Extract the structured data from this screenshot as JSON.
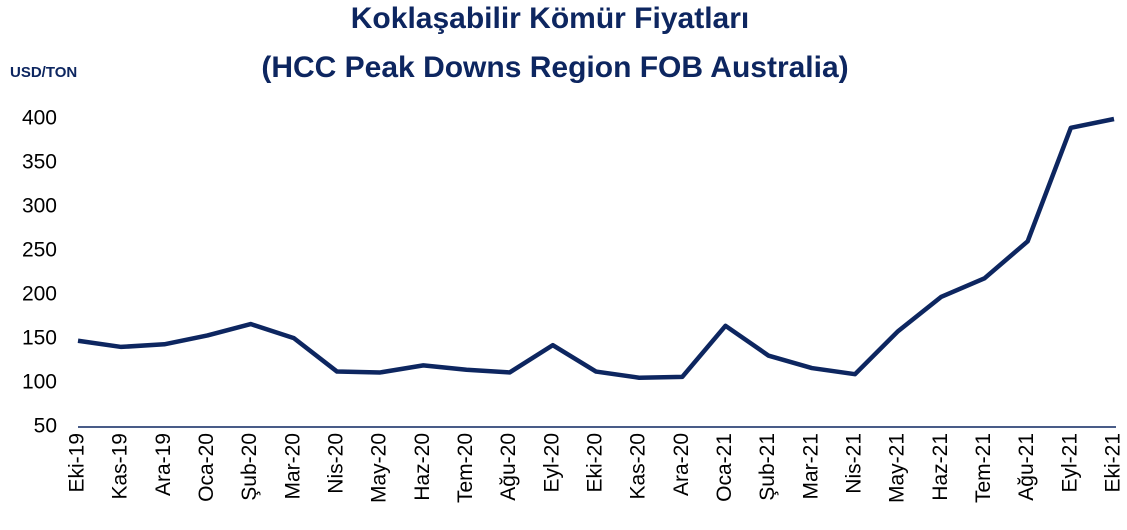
{
  "chart_data": {
    "type": "line",
    "title": [
      "Koklaşabilir Kömür Fiyatları",
      "(HCC Peak Downs Region FOB Australia)"
    ],
    "y_axis_label": "USD/TON",
    "categories": [
      "Eki-19",
      "Kas-19",
      "Ara-19",
      "Oca-20",
      "Şub-20",
      "Mar-20",
      "Nis-20",
      "May-20",
      "Haz-20",
      "Tem-20",
      "Ağu-20",
      "Eyl-20",
      "Eki-20",
      "Kas-20",
      "Ara-20",
      "Oca-21",
      "Şub-21",
      "Mar-21",
      "Nis-21",
      "May-21",
      "Haz-21",
      "Tem-21",
      "Ağu-21",
      "Eyl-21",
      "Eki-21"
    ],
    "series": [
      {
        "color": "#0d2660",
        "values": [
          148,
          141,
          144,
          154,
          167,
          151,
          113,
          112,
          120,
          115,
          112,
          143,
          113,
          106,
          107,
          165,
          131,
          117,
          110,
          159,
          198,
          219,
          261,
          390,
          400
        ]
      }
    ],
    "ylim": [
      50,
      400
    ],
    "yticks": [
      50,
      100,
      150,
      200,
      250,
      300,
      350,
      400
    ],
    "grid": false
  }
}
